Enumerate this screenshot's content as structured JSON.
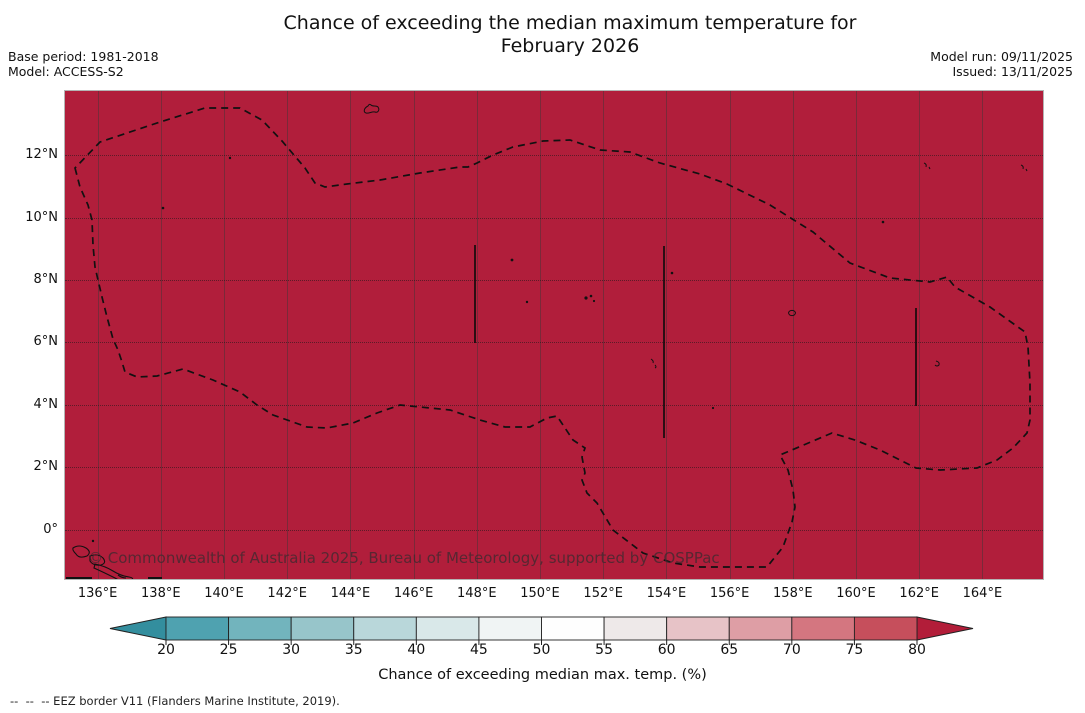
{
  "header": {
    "title_line1": "Chance of exceeding the median maximum temperature for",
    "title_line2": "February 2026",
    "base_period": "Base period: 1981-2018",
    "model": "Model: ACCESS-S2",
    "model_run": "Model run: 09/11/2025",
    "issued": "Issued: 13/11/2025"
  },
  "map": {
    "fill_color": "#b11e3b",
    "eez_border_color": "#111111",
    "watermark": "© Commonwealth of Australia 2025, Bureau of Meteorology, supported by COSPPac",
    "y_ticks": [
      "12°N",
      "10°N",
      "8°N",
      "6°N",
      "4°N",
      "2°N",
      "0°"
    ],
    "x_ticks": [
      "136°E",
      "138°E",
      "140°E",
      "142°E",
      "144°E",
      "146°E",
      "148°E",
      "150°E",
      "152°E",
      "154°E",
      "156°E",
      "158°E",
      "160°E",
      "162°E",
      "164°E"
    ]
  },
  "colorbar": {
    "label": "Chance of exceeding median max. temp. (%)",
    "ticks": [
      "20",
      "25",
      "30",
      "35",
      "40",
      "45",
      "50",
      "55",
      "60",
      "65",
      "70",
      "75",
      "80"
    ],
    "arrow_low_color": "#338e9e",
    "arrow_high_color": "#b21d39",
    "segment_colors": [
      "#4fa2b0",
      "#72b4bd",
      "#97c5ca",
      "#b9d7da",
      "#d9e8e9",
      "#f0f4f4",
      "#fefefe",
      "#eee9e9",
      "#e7c3c7",
      "#de9ea5",
      "#d47680",
      "#c64f5c"
    ]
  },
  "footnote": {
    "dashes": "--  --  --",
    "text": " EEZ border V11 (Flanders Marine Institute, 2019)."
  },
  "chart_data": {
    "type": "heatmap",
    "title": "Chance of exceeding the median maximum temperature for February 2026",
    "base_period": "1981-2018",
    "model": "ACCESS-S2",
    "model_run": "09/11/2025",
    "issued": "13/11/2025",
    "x_axis": {
      "units": "degrees East",
      "tick_labels": [
        "136°E",
        "138°E",
        "140°E",
        "142°E",
        "144°E",
        "146°E",
        "148°E",
        "150°E",
        "152°E",
        "154°E",
        "156°E",
        "158°E",
        "160°E",
        "162°E",
        "164°E"
      ],
      "range_deg_e": [
        135,
        166
      ]
    },
    "y_axis": {
      "units": "degrees North",
      "tick_labels": [
        "0°",
        "2°N",
        "4°N",
        "6°N",
        "8°N",
        "10°N",
        "12°N"
      ],
      "range_deg_n": [
        -1.6,
        13.1
      ]
    },
    "field": "Entire displayed ocean domain shaded in the darkest red class, i.e. chance > 80% everywhere",
    "overlays": [
      "dashed EEZ border loop",
      "three solid meridional EEZ sector lines near 148°E, 154°E and 162°E",
      "small island outlines"
    ],
    "colorbar": {
      "label": "Chance of exceeding median max. temp. (%)",
      "tick_values": [
        20,
        25,
        30,
        35,
        40,
        45,
        50,
        55,
        60,
        65,
        70,
        75,
        80
      ],
      "extends": "both",
      "grid": "dotted latitude lines, solid faint longitude lines"
    }
  }
}
